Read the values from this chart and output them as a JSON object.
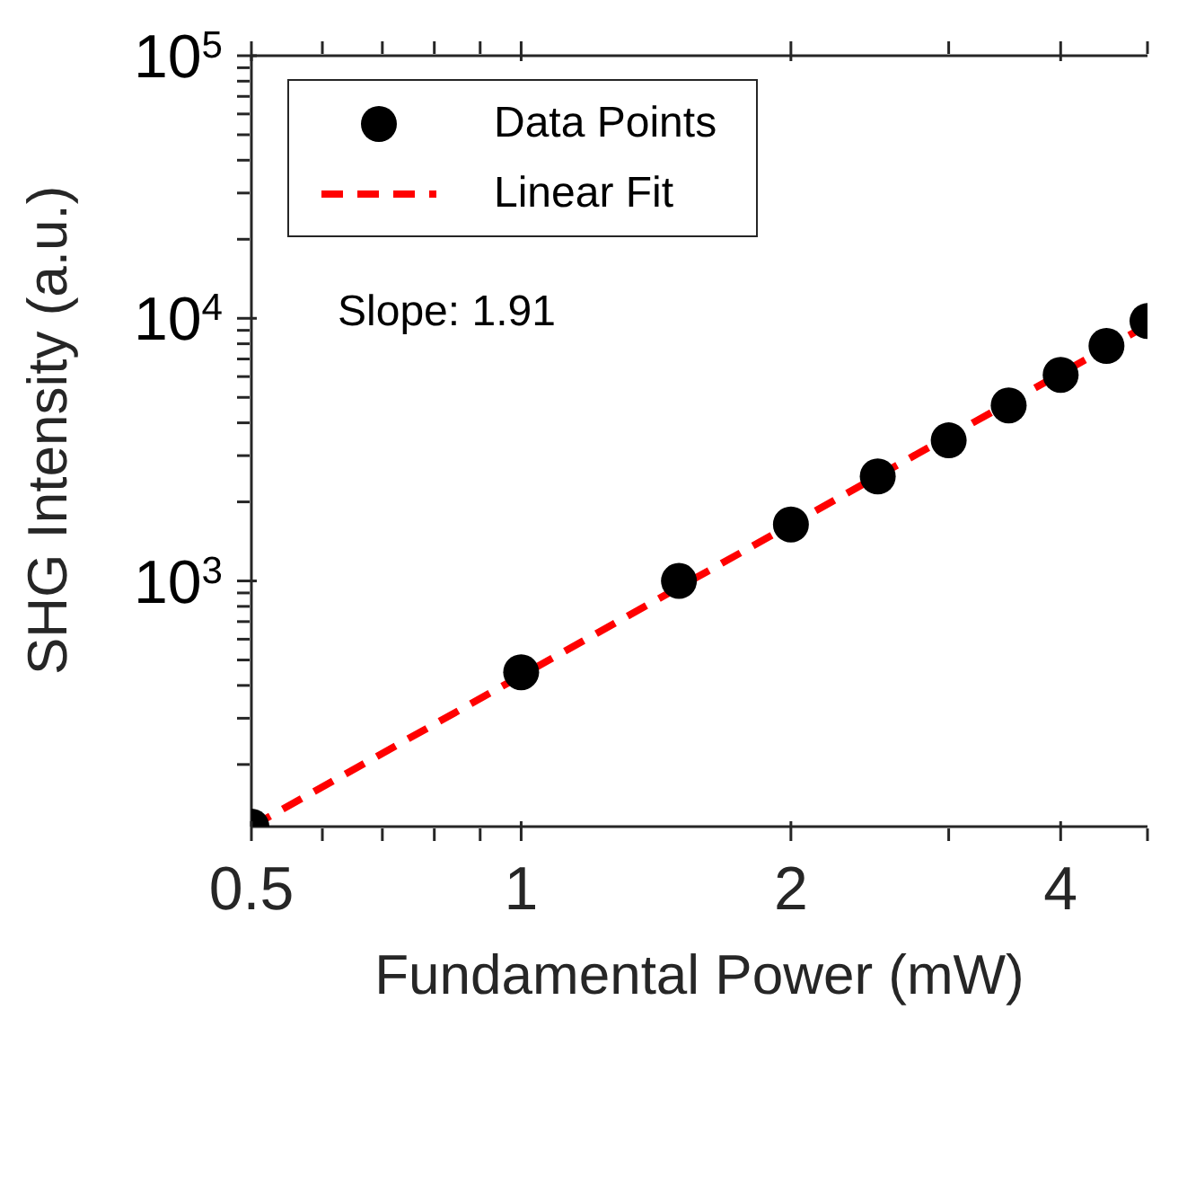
{
  "chart_data": {
    "type": "scatter",
    "xlabel": "Fundamental Power (mW)",
    "ylabel": "SHG Intensity (a.u.)",
    "annotations": [
      "Slope: 1.91"
    ],
    "log": "xy",
    "grid": false,
    "legend": "top left",
    "xlim": [
      0.5,
      5
    ],
    "xticks": [
      0.5,
      {
        "value": 0.6,
        "label": null
      },
      {
        "value": 0.7,
        "label": null
      },
      {
        "value": 0.8,
        "label": null
      },
      {
        "value": 0.9,
        "label": null
      },
      1,
      2,
      {
        "value": 3,
        "label": null
      },
      4,
      {
        "value": 5,
        "label": null
      }
    ],
    "ylim": [
      116,
      100000
    ],
    "yticks": [
      {
        "value": 200,
        "label": null
      },
      {
        "value": 300,
        "label": null
      },
      {
        "value": 400,
        "label": null
      },
      {
        "value": 500,
        "label": null
      },
      {
        "value": 600,
        "label": null
      },
      {
        "value": 700,
        "label": null
      },
      {
        "value": 800,
        "label": null
      },
      {
        "value": 900,
        "label": null
      },
      {
        "value": 1000,
        "label": "10$^{3}$"
      },
      {
        "value": 2000,
        "label": null
      },
      {
        "value": 3000,
        "label": null
      },
      {
        "value": 4000,
        "label": null
      },
      {
        "value": 5000,
        "label": null
      },
      {
        "value": 6000,
        "label": null
      },
      {
        "value": 7000,
        "label": null
      },
      {
        "value": 8000,
        "label": null
      },
      {
        "value": 9000,
        "label": null
      },
      {
        "value": 10000,
        "label": "10$^{4}$"
      },
      {
        "value": 20000,
        "label": null
      },
      {
        "value": 30000,
        "label": null
      },
      {
        "value": 40000,
        "label": null
      },
      {
        "value": 50000,
        "label": null
      },
      {
        "value": 60000,
        "label": null
      },
      {
        "value": 70000,
        "label": null
      },
      {
        "value": 80000,
        "label": null
      },
      {
        "value": 90000,
        "label": null
      },
      {
        "value": 100000,
        "label": "10$^{5}$"
      }
    ],
    "series": [
      {
        "name": "Data Points",
        "type": "scatter",
        "marker": "circle",
        "color": "#000000",
        "x": [
          0.5,
          1,
          1.5,
          2,
          2.5,
          3,
          3.5,
          4,
          4.5,
          5
        ],
        "values": [
          116,
          449,
          1000,
          1640,
          2500,
          3430,
          4660,
          6090,
          7850,
          9760
        ]
      },
      {
        "name": "Linear Fit",
        "type": "line",
        "marker": "none",
        "line_style": "dashed",
        "color": "#ff0000",
        "x": [
          0.5,
          5
        ],
        "values": [
          116,
          9429
        ]
      }
    ]
  }
}
